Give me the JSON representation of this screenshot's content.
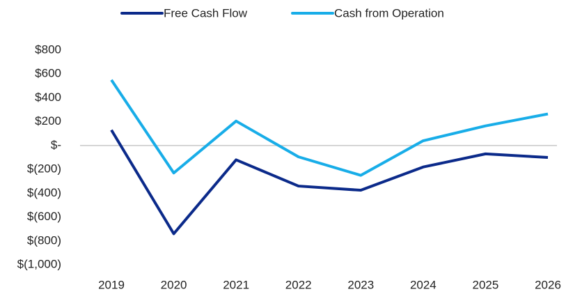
{
  "chart_data": {
    "type": "line",
    "x": [
      "2019",
      "2020",
      "2021",
      "2022",
      "2023",
      "2024",
      "2025",
      "2026"
    ],
    "series": [
      {
        "name": "Free Cash Flow",
        "color": "#0b2a8a",
        "values": [
          130,
          -740,
          -120,
          -340,
          -375,
          -180,
          -70,
          -100
        ]
      },
      {
        "name": "Cash from Operation",
        "color": "#18ade8",
        "values": [
          550,
          -230,
          205,
          -95,
          -250,
          40,
          165,
          265
        ]
      }
    ],
    "ylim": [
      -1000,
      800
    ],
    "yticks": [
      {
        "value": 800,
        "label": "$800"
      },
      {
        "value": 600,
        "label": "$600"
      },
      {
        "value": 400,
        "label": "$400"
      },
      {
        "value": 200,
        "label": "$200"
      },
      {
        "value": 0,
        "label": "$-"
      },
      {
        "value": -200,
        "label": "$(200)"
      },
      {
        "value": -400,
        "label": "$(400)"
      },
      {
        "value": -600,
        "label": "$(600)"
      },
      {
        "value": -800,
        "label": "$(800)"
      },
      {
        "value": -1000,
        "label": "$(1,000)"
      }
    ],
    "grid": false,
    "legend": "top"
  }
}
